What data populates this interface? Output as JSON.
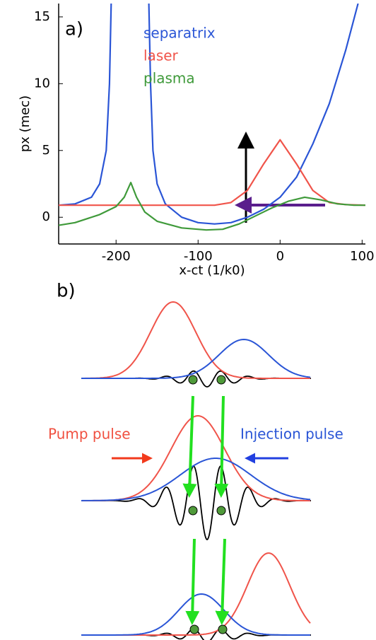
{
  "chart_data": {
    "type": "line",
    "panel_label": "a)",
    "x_label": "x-ct (1/k0)",
    "y_label": "px (mec)",
    "xlim": [
      -270,
      104
    ],
    "ylim": [
      -2,
      16
    ],
    "xticks": [
      -200,
      -100,
      0,
      100
    ],
    "yticks": [
      0,
      5,
      10,
      15
    ],
    "series": [
      {
        "name": "separatrix",
        "color": "#2a55d6",
        "x": [
          -270,
          -250,
          -230,
          -220,
          -212,
          -208,
          -206,
          null,
          -160,
          -158,
          -155,
          -150,
          -140,
          -120,
          -100,
          -80,
          -60,
          -40,
          -20,
          0,
          20,
          40,
          60,
          80,
          95
        ],
        "values": [
          0.9,
          1.0,
          1.5,
          2.5,
          5,
          10,
          16,
          null,
          16,
          10,
          5,
          2.5,
          1,
          0,
          -0.4,
          -0.5,
          -0.4,
          0,
          0.6,
          1.5,
          3,
          5.5,
          8.5,
          12.5,
          16
        ]
      },
      {
        "name": "laser",
        "color": "#f0544a",
        "x": [
          -270,
          -80,
          -60,
          -40,
          -20,
          0,
          20,
          40,
          60,
          80,
          104
        ],
        "values": [
          0.9,
          0.9,
          1.1,
          2.0,
          4.0,
          5.8,
          4.0,
          2.0,
          1.1,
          0.95,
          0.9
        ]
      },
      {
        "name": "plasma",
        "color": "#3f9a3a",
        "x": [
          -270,
          -250,
          -220,
          -200,
          -190,
          -182,
          -175,
          -165,
          -150,
          -120,
          -90,
          -70,
          -50,
          -30,
          -10,
          10,
          30,
          50,
          70,
          90,
          104
        ],
        "values": [
          -0.6,
          -0.4,
          0.2,
          0.8,
          1.5,
          2.6,
          1.5,
          0.4,
          -0.3,
          -0.8,
          -0.95,
          -0.9,
          -0.5,
          0.1,
          0.7,
          1.2,
          1.5,
          1.3,
          1.0,
          0.9,
          0.9
        ]
      }
    ]
  },
  "diagram": {
    "label": "b)",
    "pump_label": "Pump pulse",
    "injection_label": "Injection pulse"
  }
}
